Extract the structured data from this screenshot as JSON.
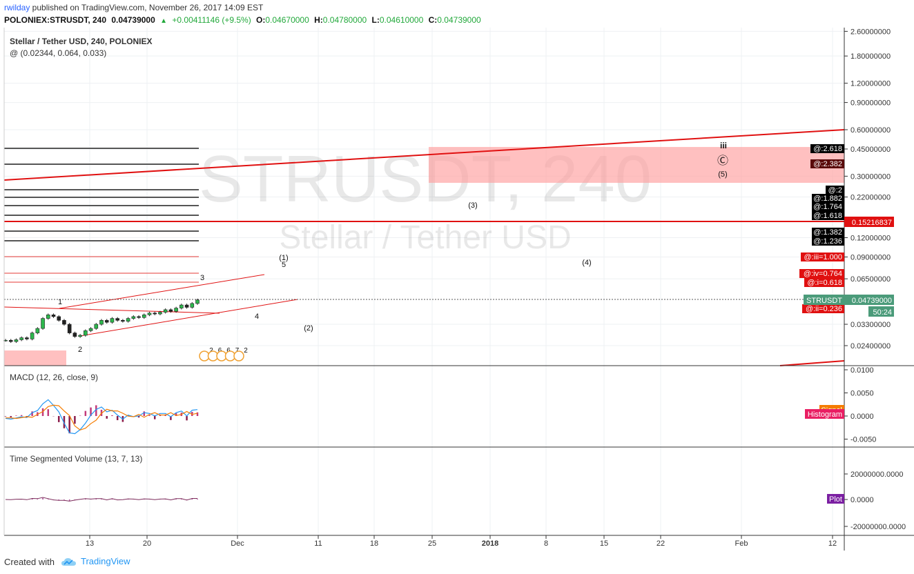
{
  "header": {
    "author": "rwilday",
    "published_text": " published on TradingView.com, November 26, 2017 14:09 EST",
    "symbol": "POLONIEX:STRUSDT, 240",
    "price": "0.04739000",
    "arrow": "▲",
    "change": "+0.00411146 (+9.5%)",
    "o_label": "O:",
    "o_value": "0.04670000",
    "h_label": "H:",
    "h_value": "0.04780000",
    "l_label": "L:",
    "l_value": "0.04610000",
    "c_label": "C:",
    "c_value": "0.04739000"
  },
  "chart_data": {
    "type": "candlestick",
    "title": "Stellar / Tether USD, 240, POLONIEX",
    "subtitle": "@ (0.02344, 0.064, 0.033)",
    "watermark_symbol": "STRUSDT, 240",
    "watermark_name": "Stellar / Tether USD",
    "y_scale": "log",
    "y_ticks": [
      "2.60000000",
      "1.80000000",
      "1.20000000",
      "0.90000000",
      "0.60000000",
      "0.45000000",
      "0.30000000",
      "0.22000000",
      "0.15216837",
      "0.12000000",
      "0.09000000",
      "0.06500000",
      "0.04739000",
      "0.03300000",
      "0.02400000"
    ],
    "x_ticks": [
      "13",
      "20",
      "Dec",
      "11",
      "18",
      "25",
      "2018",
      "8",
      "15",
      "22",
      "Feb",
      "12"
    ],
    "last_price": "0.04739000",
    "symbol_tag": "STRUSDT",
    "countdown": "50:24",
    "red_level_label": "0.15216837",
    "price_series": [
      0.026,
      0.0255,
      0.0262,
      0.027,
      0.0265,
      0.029,
      0.031,
      0.036,
      0.038,
      0.037,
      0.035,
      0.033,
      0.029,
      0.0275,
      0.028,
      0.03,
      0.031,
      0.033,
      0.035,
      0.034,
      0.036,
      0.035,
      0.0345,
      0.036,
      0.037,
      0.0365,
      0.038,
      0.039,
      0.0385,
      0.0395,
      0.041,
      0.04,
      0.042,
      0.044,
      0.0425,
      0.045,
      0.0474
    ],
    "fib_labels": [
      "@:2.618",
      "@:2.382",
      "@:2",
      "@:1.882",
      "@:1.764",
      "@:1.618",
      "@:1.382",
      "@:1.236",
      "@:iii=1.000",
      "@:iv=0.764",
      "@:i=0.618",
      "@:ii=0.236"
    ],
    "wave_labels": [
      "1",
      "2",
      "3",
      "4",
      "5",
      "(1)",
      "(2)",
      "(3)",
      "(4)",
      "(5)",
      "iii",
      "Ⓒ"
    ],
    "event_digits": [
      "2",
      "6",
      "6",
      "7",
      "2"
    ],
    "macd": {
      "title": "MACD (12, 26, close, 9)",
      "y_ticks": [
        "0.0100",
        "0.0050",
        "0.0000",
        "-0.0050"
      ],
      "labels": [
        "Signal",
        "Histogram"
      ]
    },
    "tsv": {
      "title": "Time Segmented Volume (13, 7, 13)",
      "y_ticks": [
        "20000000.0000",
        "0.0000",
        "-20000000.0000"
      ],
      "label": "Plot"
    }
  },
  "footer": {
    "created_with": "Created with",
    "brand": "TradingView"
  }
}
